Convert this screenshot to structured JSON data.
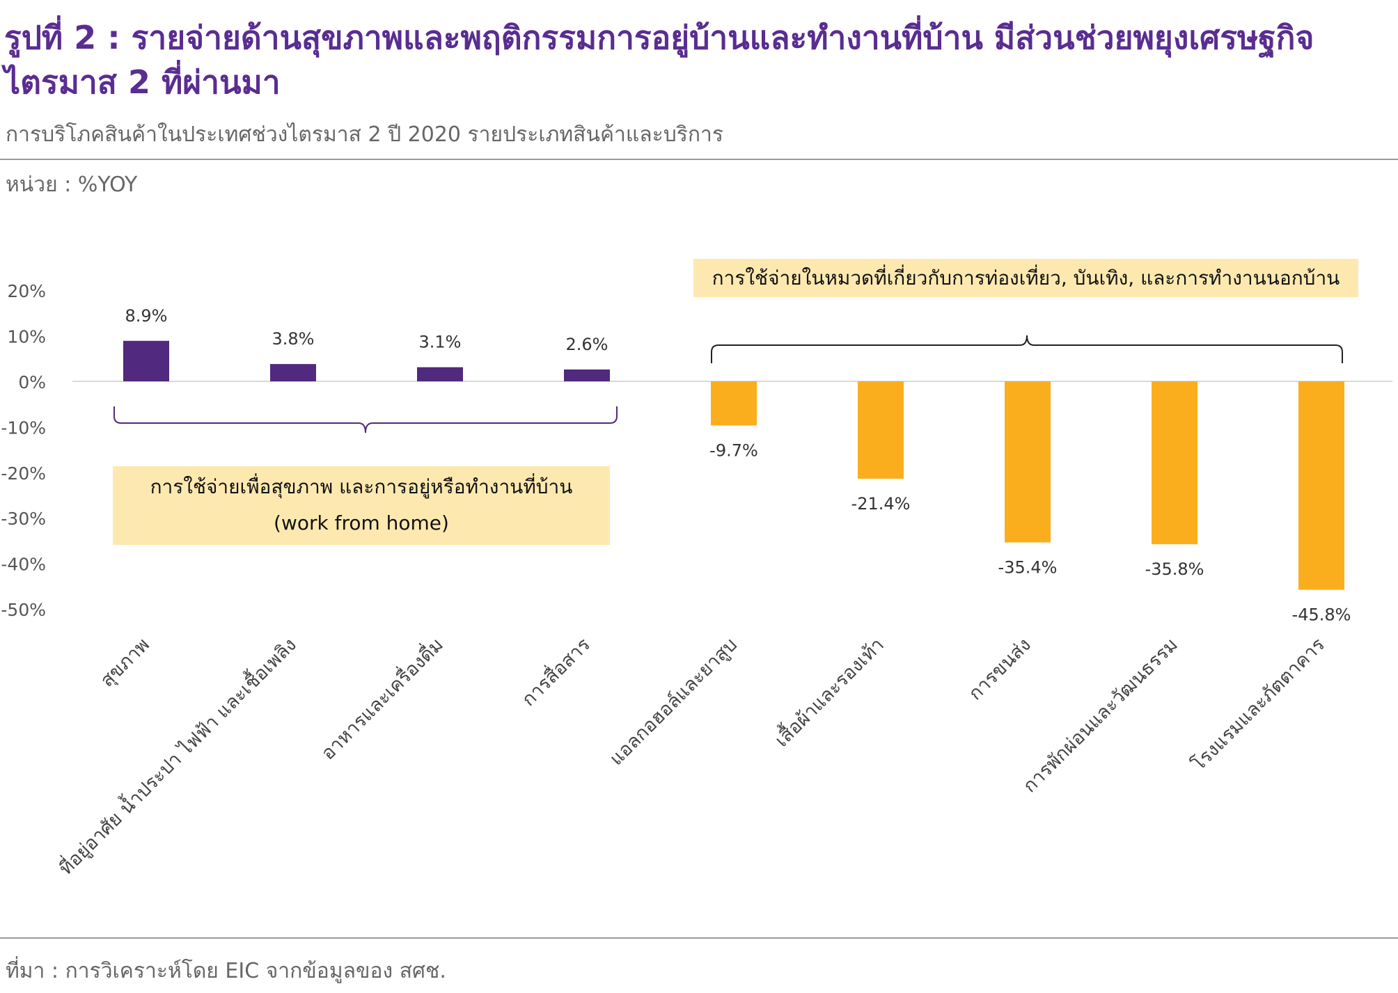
{
  "title": "รูปที่ 2 : รายจ่ายด้านสุขภาพและพฤติกรรมการอยู่บ้านและทำงานที่บ้าน มีส่วนช่วยพยุงเศรษฐกิจไตรมาส 2 ที่ผ่านมา",
  "subtitle": "การบริโภคสินค้าในประเทศช่วงไตรมาส 2 ปี 2020 รายประเภทสินค้าและบริการ",
  "unit": "หน่วย : %YOY",
  "source": "ที่มา : การวิเคราะห์โดย EIC จากข้อมูลของ สศช.",
  "annotations": {
    "wfh_line1": "การใช้จ่ายเพื่อสุขภาพ และการอยู่หรือทำงานที่บ้าน",
    "wfh_line2": "(work from home)",
    "outside": "การใช้จ่ายในหมวดที่เกี่ยวกับการท่องเที่ยว, บันเทิง, และการทำงานนอกบ้าน"
  },
  "colors": {
    "positive": "#51297e",
    "negative": "#fbae1d",
    "annotation_box": "#fde9b0",
    "title": "#5a2d91"
  },
  "chart_data": {
    "type": "bar",
    "title": "",
    "xlabel": "",
    "ylabel": "",
    "ylim": [
      -50,
      20
    ],
    "yticks": [
      20,
      10,
      0,
      -10,
      -20,
      -30,
      -40,
      -50
    ],
    "ytick_labels": [
      "20%",
      "10%",
      "0%",
      "-10%",
      "-20%",
      "-30%",
      "-40%",
      "-50%"
    ],
    "categories": [
      "สุขภาพ",
      "ที่อยู่อาศัย น้ำประปา ไฟฟ้า และเชื้อเพลิง",
      "อาหารและเครื่องดื่ม",
      "การสื่อสาร",
      "แอลกอฮอล์และยาสูบ",
      "เสื้อผ้าและรองเท้า",
      "การขนส่ง",
      "การพักผ่อนและวัฒนธรรม",
      "โรงแรมและภัตตาคาร"
    ],
    "values": [
      8.9,
      3.8,
      3.1,
      2.6,
      -9.7,
      -21.4,
      -35.4,
      -35.8,
      -45.8
    ],
    "value_labels": [
      "8.9%",
      "3.8%",
      "3.1%",
      "2.6%",
      "-9.7%",
      "-21.4%",
      "-35.4%",
      "-35.8%",
      "-45.8%"
    ],
    "grid": false,
    "legend": "none"
  }
}
